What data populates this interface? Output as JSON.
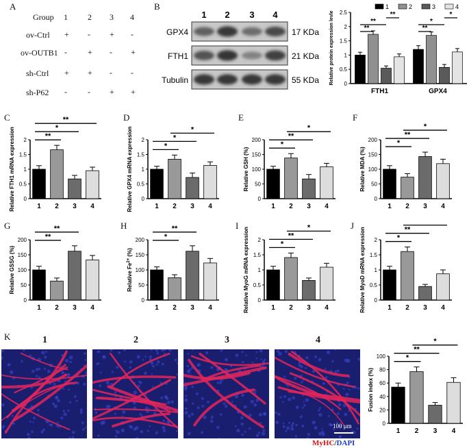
{
  "panels": {
    "A": "A",
    "B": "B",
    "C": "C",
    "D": "D",
    "E": "E",
    "F": "F",
    "G": "G",
    "H": "H",
    "I": "I",
    "J": "J",
    "K": "K"
  },
  "groups": [
    "1",
    "2",
    "3",
    "4"
  ],
  "design_table": {
    "header": "Group",
    "rows": [
      {
        "label": "ov-Ctrl",
        "marks": [
          "+",
          "-",
          "+",
          "-"
        ]
      },
      {
        "label": "ov-OUTB1",
        "marks": [
          "-",
          "+",
          "-",
          "+"
        ]
      },
      {
        "label": "sh-Ctrl",
        "marks": [
          "+",
          "+",
          "-",
          "-"
        ]
      },
      {
        "label": "sh-P62",
        "marks": [
          "-",
          "-",
          "+",
          "+"
        ]
      }
    ]
  },
  "western_blot": {
    "lanes": [
      "1",
      "2",
      "3",
      "4"
    ],
    "bands": [
      {
        "protein": "GPX4",
        "size": "17 KDa",
        "intensity": [
          0.62,
          0.9,
          0.55,
          0.78
        ]
      },
      {
        "protein": "FTH1",
        "size": "21 KDa",
        "intensity": [
          0.72,
          0.92,
          0.4,
          0.85
        ]
      },
      {
        "protein": "Tubulin",
        "size": "55 KDa",
        "intensity": [
          0.9,
          0.9,
          0.9,
          0.9
        ]
      }
    ]
  },
  "chart_data": [
    {
      "id": "B",
      "type": "bar",
      "ylabel": "Relative protein expression levle",
      "ylim": [
        0,
        2.5
      ],
      "ticks": [
        0,
        0.5,
        1,
        1.5,
        2,
        2.5
      ],
      "categories": [
        "FTH1",
        "GPX4"
      ],
      "series": [
        {
          "name": "1",
          "values": [
            1.0,
            1.2
          ],
          "err": [
            0.1,
            0.13
          ],
          "color": "#000000"
        },
        {
          "name": "2",
          "values": [
            1.73,
            1.69
          ],
          "err": [
            0.12,
            0.12
          ],
          "color": "#909090"
        },
        {
          "name": "3",
          "values": [
            0.54,
            0.57
          ],
          "err": [
            0.08,
            0.1
          ],
          "color": "#5a5a5a"
        },
        {
          "name": "4",
          "values": [
            0.94,
            1.11
          ],
          "err": [
            0.1,
            0.12
          ],
          "color": "#e4e4e4"
        }
      ],
      "sig": [
        {
          "cat": 0,
          "from": 0,
          "to": 1,
          "label": "**",
          "level": 0
        },
        {
          "cat": 0,
          "from": 0,
          "to": 2,
          "label": "**",
          "level": 1
        },
        {
          "cat": 0,
          "from": 2,
          "to": 3,
          "label": "**",
          "level": 2
        },
        {
          "cat": 1,
          "from": 0,
          "to": 1,
          "label": "**",
          "level": 0
        },
        {
          "cat": 1,
          "from": 0,
          "to": 2,
          "label": "*",
          "level": 1
        },
        {
          "cat": 1,
          "from": 2,
          "to": 3,
          "label": "*",
          "level": 2
        }
      ]
    },
    {
      "id": "C",
      "type": "bar",
      "ylabel": "Relative FTH1 mRNA expression",
      "ylim": [
        0,
        2.0
      ],
      "ticks": [
        0,
        0.5,
        1,
        1.5,
        2
      ],
      "categories": [
        "1",
        "2",
        "3",
        "4"
      ],
      "values": [
        1.0,
        1.66,
        0.67,
        0.95
      ],
      "err": [
        0.12,
        0.15,
        0.12,
        0.12
      ],
      "sig": [
        {
          "from": 0,
          "to": 1,
          "label": "**"
        },
        {
          "from": 0,
          "to": 2,
          "label": "*"
        },
        {
          "from": 0,
          "to": 3,
          "label": "**"
        }
      ]
    },
    {
      "id": "D",
      "type": "bar",
      "ylabel": "Relative GPX4 mRNA expression",
      "ylim": [
        0,
        2.0
      ],
      "ticks": [
        0,
        0.5,
        1,
        1.5,
        2
      ],
      "categories": [
        "1",
        "2",
        "3",
        "4"
      ],
      "values": [
        1.0,
        1.34,
        0.72,
        1.13
      ],
      "err": [
        0.1,
        0.14,
        0.15,
        0.12
      ],
      "sig": [
        {
          "from": 0,
          "to": 1,
          "label": "*"
        },
        {
          "from": 0,
          "to": 2,
          "label": "*"
        },
        {
          "from": 1,
          "to": 3,
          "label": "*"
        }
      ]
    },
    {
      "id": "E",
      "type": "bar",
      "ylabel": "Relative GSH (%)",
      "ylim": [
        0,
        200
      ],
      "ticks": [
        0,
        50,
        100,
        150,
        200
      ],
      "categories": [
        "1",
        "2",
        "3",
        "4"
      ],
      "values": [
        100,
        138,
        67,
        108
      ],
      "err": [
        10,
        15,
        15,
        12
      ],
      "sig": [
        {
          "from": 0,
          "to": 1,
          "label": "*"
        },
        {
          "from": 0,
          "to": 2,
          "label": "**"
        },
        {
          "from": 1,
          "to": 3,
          "label": "*"
        }
      ]
    },
    {
      "id": "F",
      "type": "bar",
      "ylabel": "Relative MDA (%)",
      "ylim": [
        0,
        200
      ],
      "ticks": [
        0,
        50,
        100,
        150,
        200
      ],
      "categories": [
        "1",
        "2",
        "3",
        "4"
      ],
      "values": [
        100,
        73,
        143,
        119
      ],
      "err": [
        12,
        12,
        15,
        15
      ],
      "sig": [
        {
          "from": 0,
          "to": 1,
          "label": "*"
        },
        {
          "from": 0,
          "to": 2,
          "label": "**"
        },
        {
          "from": 1,
          "to": 3,
          "label": "*"
        }
      ]
    },
    {
      "id": "G",
      "type": "bar",
      "ylabel": "Relative GSSG (%)",
      "ylim": [
        0,
        200
      ],
      "ticks": [
        0,
        50,
        100,
        150,
        200
      ],
      "categories": [
        "1",
        "2",
        "3",
        "4"
      ],
      "values": [
        100,
        63,
        162,
        133
      ],
      "err": [
        12,
        10,
        18,
        15
      ],
      "sig": [
        {
          "from": 0,
          "to": 1,
          "label": "**"
        },
        {
          "from": 0,
          "to": 2,
          "label": "**"
        },
        {
          "from": 1,
          "to": 3,
          "label": "*"
        }
      ]
    },
    {
      "id": "H",
      "type": "bar",
      "ylabel": "Relative Fe2+ (%)",
      "ylim": [
        0,
        200
      ],
      "ticks": [
        0,
        50,
        100,
        150,
        200
      ],
      "categories": [
        "1",
        "2",
        "3",
        "4"
      ],
      "values": [
        100,
        74,
        162,
        123
      ],
      "err": [
        10,
        10,
        18,
        15
      ],
      "sig": [
        {
          "from": 0,
          "to": 1,
          "label": "*"
        },
        {
          "from": 0,
          "to": 2,
          "label": "**"
        },
        {
          "from": 1,
          "to": 3,
          "label": "**"
        }
      ]
    },
    {
      "id": "I",
      "type": "bar",
      "ylabel": "Relative MyoG mRNA expression",
      "ylim": [
        0,
        2.0
      ],
      "ticks": [
        0,
        0.5,
        1,
        1.5,
        2
      ],
      "categories": [
        "1",
        "2",
        "3",
        "4"
      ],
      "values": [
        1.0,
        1.41,
        0.65,
        1.09
      ],
      "err": [
        0.12,
        0.15,
        0.08,
        0.13
      ],
      "sig": [
        {
          "from": 0,
          "to": 1,
          "label": "*"
        },
        {
          "from": 0,
          "to": 2,
          "label": "**"
        },
        {
          "from": 1,
          "to": 3,
          "label": "*"
        }
      ]
    },
    {
      "id": "J",
      "type": "bar",
      "ylabel": "Relative MyoD mRNA expression",
      "ylim": [
        0,
        2.0
      ],
      "ticks": [
        0,
        0.5,
        1,
        1.5,
        2
      ],
      "categories": [
        "1",
        "2",
        "3",
        "4"
      ],
      "values": [
        1.0,
        1.61,
        0.45,
        0.87
      ],
      "err": [
        0.12,
        0.15,
        0.07,
        0.13
      ],
      "sig": [
        {
          "from": 0,
          "to": 1,
          "label": "*"
        },
        {
          "from": 0,
          "to": 2,
          "label": "**"
        },
        {
          "from": 1,
          "to": 3,
          "label": "*"
        }
      ]
    },
    {
      "id": "K",
      "type": "bar",
      "ylabel": "Fusion index (%)",
      "ylim": [
        0,
        100
      ],
      "ticks": [
        0,
        20,
        40,
        60,
        80,
        100
      ],
      "categories": [
        "1",
        "2",
        "3",
        "4"
      ],
      "values": [
        54,
        77,
        27,
        61
      ],
      "err": [
        6,
        7,
        4,
        7
      ],
      "sig": [
        {
          "from": 0,
          "to": 1,
          "label": "*"
        },
        {
          "from": 0,
          "to": 2,
          "label": "**"
        },
        {
          "from": 1,
          "to": 3,
          "label": "*"
        }
      ]
    }
  ],
  "bar_colors": [
    "#000000",
    "#999999",
    "#6b6b6b",
    "#dddddd"
  ],
  "microscopy": {
    "panels": [
      "1",
      "2",
      "3",
      "4"
    ],
    "scale_bar": "100 μm"
  },
  "stain": {
    "myhc": "MyHC",
    "slash": "/",
    "dapi": "DAPI",
    "myhc_color": "#e01010",
    "dapi_color": "#1a3ccc"
  }
}
